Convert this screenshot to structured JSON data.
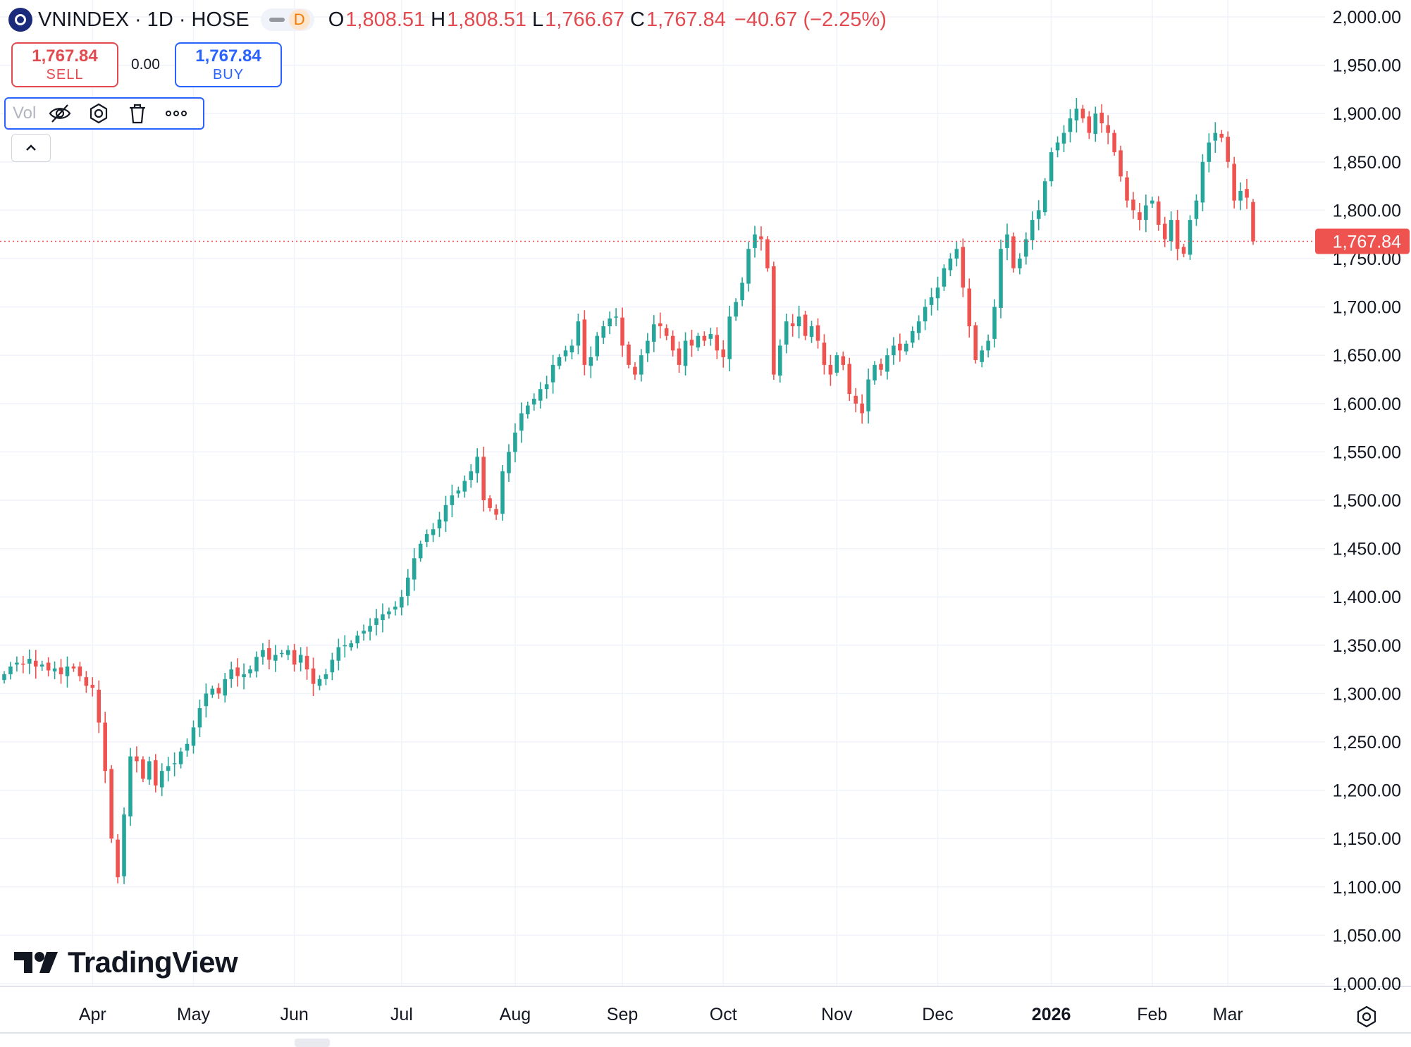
{
  "header": {
    "title": "VNINDEX · 1D · HOSE",
    "interval_badge": "D",
    "ohlc": [
      {
        "key": "O",
        "value": "1,808.51"
      },
      {
        "key": "H",
        "value": "1,808.51"
      },
      {
        "key": "L",
        "value": "1,766.67"
      },
      {
        "key": "C",
        "value": "1,767.84"
      }
    ],
    "change": "−40.67 (−2.25%)"
  },
  "trade": {
    "sell_price": "1,767.84",
    "sell_label": "SELL",
    "spread": "0.00",
    "buy_price": "1,767.84",
    "buy_label": "BUY"
  },
  "indicator": {
    "label": "Vol"
  },
  "brand": {
    "name": "TradingView"
  },
  "colors": {
    "up": "#26a69a",
    "down": "#ef5350",
    "grid": "#f0f3fa",
    "text": "#131722",
    "accent": "#2962ff"
  },
  "chart_data": {
    "type": "candlestick",
    "title": "VNINDEX · 1D · HOSE",
    "ylim": [
      1000,
      2000
    ],
    "yticks": [
      "2,000.00",
      "1,950.00",
      "1,900.00",
      "1,850.00",
      "1,800.00",
      "1,750.00",
      "1,700.00",
      "1,650.00",
      "1,600.00",
      "1,550.00",
      "1,500.00",
      "1,450.00",
      "1,400.00",
      "1,350.00",
      "1,300.00",
      "1,250.00",
      "1,200.00",
      "1,150.00",
      "1,100.00",
      "1,050.00",
      "1,000.00"
    ],
    "ytick_values": [
      2000,
      1950,
      1900,
      1850,
      1800,
      1750,
      1700,
      1650,
      1600,
      1550,
      1500,
      1450,
      1400,
      1350,
      1300,
      1250,
      1200,
      1150,
      1100,
      1050,
      1000
    ],
    "xticks": [
      {
        "label": "Apr",
        "index": 14,
        "bold": false
      },
      {
        "label": "May",
        "index": 30,
        "bold": false
      },
      {
        "label": "Jun",
        "index": 46,
        "bold": false
      },
      {
        "label": "Jul",
        "index": 63,
        "bold": false
      },
      {
        "label": "Aug",
        "index": 81,
        "bold": false
      },
      {
        "label": "Sep",
        "index": 98,
        "bold": false
      },
      {
        "label": "Oct",
        "index": 114,
        "bold": false
      },
      {
        "label": "Nov",
        "index": 132,
        "bold": false
      },
      {
        "label": "Dec",
        "index": 148,
        "bold": false
      },
      {
        "label": "2026",
        "index": 166,
        "bold": true
      },
      {
        "label": "Feb",
        "index": 182,
        "bold": false
      },
      {
        "label": "Mar",
        "index": 194,
        "bold": false
      }
    ],
    "last_price_label": "1,767.84",
    "last_price": 1767.84,
    "series_close": [
      1320,
      1328,
      1332,
      1330,
      1336,
      1328,
      1330,
      1324,
      1326,
      1320,
      1328,
      1326,
      1318,
      1308,
      1306,
      1270,
      1220,
      1150,
      1110,
      1175,
      1235,
      1230,
      1212,
      1230,
      1205,
      1220,
      1225,
      1228,
      1240,
      1248,
      1265,
      1285,
      1300,
      1305,
      1300,
      1315,
      1325,
      1318,
      1320,
      1325,
      1338,
      1345,
      1335,
      1340,
      1342,
      1345,
      1330,
      1340,
      1325,
      1310,
      1315,
      1320,
      1335,
      1348,
      1350,
      1352,
      1360,
      1365,
      1370,
      1378,
      1382,
      1385,
      1390,
      1400,
      1420,
      1440,
      1455,
      1465,
      1470,
      1480,
      1495,
      1505,
      1510,
      1520,
      1530,
      1545,
      1500,
      1492,
      1485,
      1530,
      1550,
      1570,
      1590,
      1598,
      1605,
      1615,
      1620,
      1640,
      1648,
      1655,
      1660,
      1685,
      1640,
      1648,
      1670,
      1680,
      1688,
      1690,
      1660,
      1640,
      1630,
      1650,
      1665,
      1682,
      1680,
      1670,
      1655,
      1640,
      1665,
      1660,
      1670,
      1665,
      1672,
      1655,
      1648,
      1690,
      1705,
      1725,
      1760,
      1775,
      1770,
      1740,
      1630,
      1660,
      1685,
      1680,
      1690,
      1670,
      1680,
      1665,
      1640,
      1630,
      1650,
      1640,
      1610,
      1600,
      1590,
      1625,
      1640,
      1635,
      1650,
      1660,
      1655,
      1662,
      1675,
      1685,
      1700,
      1710,
      1720,
      1740,
      1750,
      1760,
      1720,
      1680,
      1645,
      1655,
      1665,
      1700,
      1760,
      1775,
      1740,
      1750,
      1770,
      1790,
      1800,
      1830,
      1860,
      1870,
      1880,
      1895,
      1905,
      1895,
      1880,
      1900,
      1890,
      1880,
      1860,
      1835,
      1810,
      1800,
      1790,
      1805,
      1810,
      1785,
      1770,
      1790,
      1760,
      1755,
      1790,
      1810,
      1850,
      1870,
      1880,
      1875,
      1850,
      1810,
      1820,
      1813,
      1767.84
    ]
  }
}
